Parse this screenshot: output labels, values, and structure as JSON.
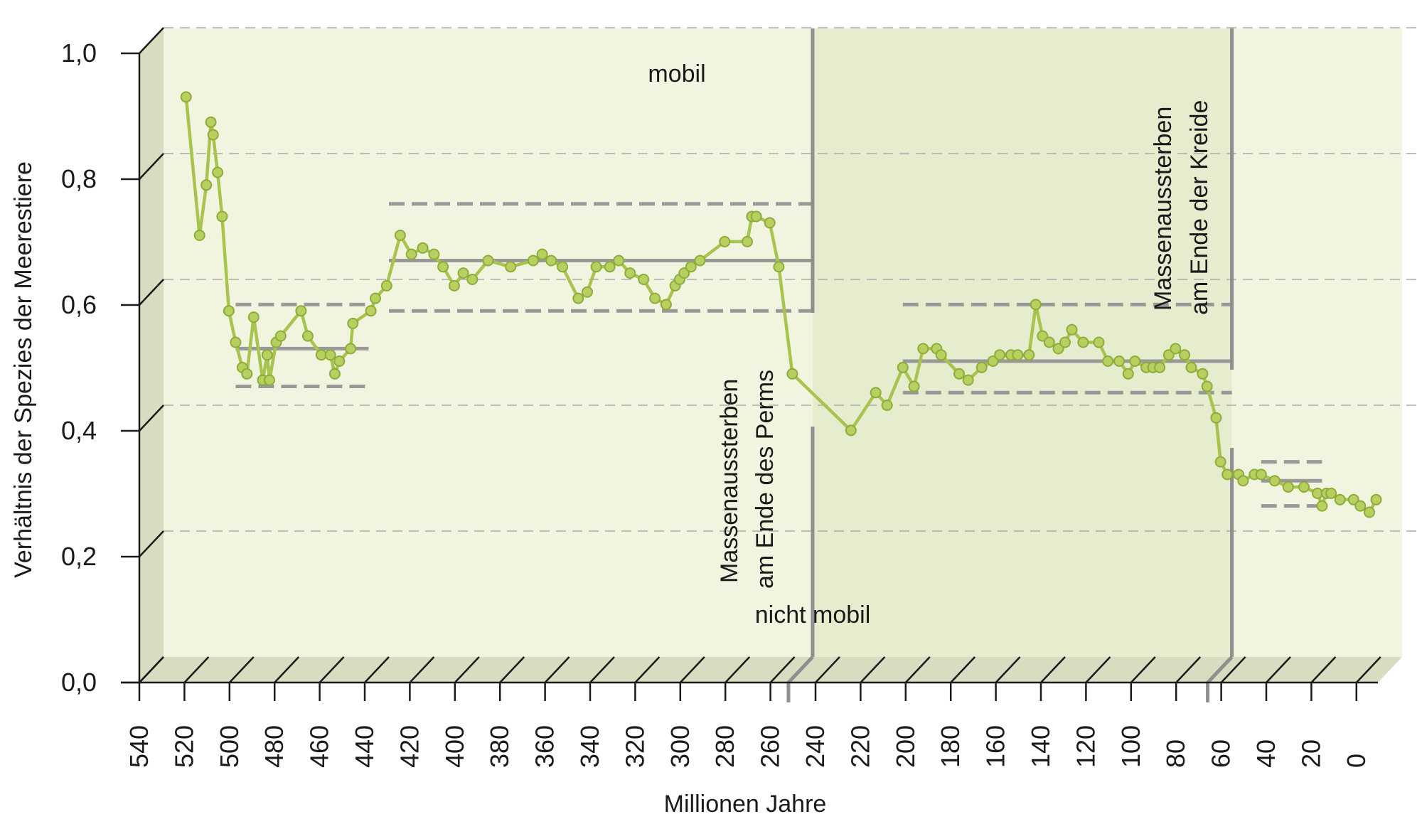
{
  "chart_data": {
    "type": "line",
    "ylabel": "Verhältnis der Spezies der Meerestiere",
    "xlabel": "Millionen Jahre",
    "xlim": [
      540,
      0
    ],
    "ylim": [
      0,
      1.0
    ],
    "y_ticks": [
      0.0,
      0.2,
      0.4,
      0.6,
      0.8,
      1.0
    ],
    "y_tick_labels": [
      "0,0",
      "0,2",
      "0,4",
      "0,6",
      "0,8",
      "1,0"
    ],
    "x_ticks": [
      540,
      520,
      500,
      480,
      460,
      440,
      420,
      400,
      380,
      360,
      340,
      320,
      300,
      280,
      260,
      240,
      220,
      200,
      180,
      160,
      140,
      120,
      100,
      80,
      60,
      40,
      20,
      0
    ],
    "x_tick_labels": [
      "540",
      "520",
      "500",
      "480",
      "460",
      "440",
      "420",
      "400",
      "380",
      "360",
      "340",
      "320",
      "300",
      "280",
      "260",
      "240",
      "220",
      "200",
      "180",
      "160",
      "140",
      "120",
      "100",
      "80",
      "60",
      "40",
      "20",
      "0"
    ],
    "grid": true,
    "colors": {
      "line": "#a8c44e",
      "marker": "#b7d160",
      "panel_light": "#f1f5e0",
      "panel_dark": "#e6edcf",
      "floor": "#d6ddc0",
      "reference": "#999999"
    },
    "annotations": {
      "top": "mobil",
      "bottom": "nicht mobil",
      "perm": [
        "Massenaussterben",
        "am Ende des Perms"
      ],
      "kreide": [
        "Massenaussterben",
        "am Ende der Kreide"
      ]
    },
    "extinction_events": [
      252,
      66
    ],
    "series": [
      {
        "x": [
          530,
          524,
          521,
          519,
          518,
          516,
          514,
          511,
          508,
          505,
          503,
          500,
          496,
          494,
          493,
          490,
          488,
          479,
          476,
          470,
          466,
          464,
          462,
          457,
          456,
          448,
          446,
          441,
          435,
          430,
          425,
          420,
          416,
          411,
          407,
          403,
          396,
          386,
          376,
          372,
          368,
          363,
          356,
          352,
          348,
          342,
          338,
          333,
          327,
          322,
          317,
          313,
          311,
          309,
          306,
          302,
          291,
          281,
          279,
          277,
          271,
          267,
          261,
          235,
          224,
          219,
          212,
          207,
          203,
          197,
          195,
          187,
          183,
          177,
          172,
          169,
          164,
          161,
          156,
          153,
          150,
          147,
          143,
          140,
          137,
          132,
          125,
          121,
          116,
          112,
          109,
          104,
          101,
          98,
          94,
          91,
          87,
          84,
          79,
          77,
          73,
          71,
          68,
          63,
          61,
          56,
          53,
          47,
          41,
          34,
          28,
          26,
          24,
          22,
          18,
          12,
          9,
          5,
          2
        ],
        "y": [
          0.89,
          0.67,
          0.75,
          0.85,
          0.83,
          0.77,
          0.7,
          0.55,
          0.5,
          0.46,
          0.45,
          0.54,
          0.44,
          0.48,
          0.44,
          0.5,
          0.51,
          0.55,
          0.51,
          0.48,
          0.48,
          0.45,
          0.47,
          0.49,
          0.53,
          0.55,
          0.57,
          0.59,
          0.67,
          0.64,
          0.65,
          0.64,
          0.62,
          0.59,
          0.61,
          0.6,
          0.63,
          0.62,
          0.63,
          0.64,
          0.63,
          0.62,
          0.57,
          0.58,
          0.62,
          0.62,
          0.63,
          0.61,
          0.6,
          0.57,
          0.56,
          0.59,
          0.6,
          0.61,
          0.62,
          0.63,
          0.66,
          0.66,
          0.7,
          0.7,
          0.69,
          0.62,
          0.45,
          0.36,
          0.42,
          0.4,
          0.46,
          0.43,
          0.49,
          0.49,
          0.48,
          0.45,
          0.44,
          0.46,
          0.47,
          0.48,
          0.48,
          0.48,
          0.48,
          0.56,
          0.51,
          0.5,
          0.49,
          0.5,
          0.52,
          0.5,
          0.5,
          0.47,
          0.47,
          0.45,
          0.47,
          0.46,
          0.46,
          0.46,
          0.48,
          0.49,
          0.48,
          0.46,
          0.45,
          0.43,
          0.38,
          0.31,
          0.29,
          0.29,
          0.28,
          0.29,
          0.29,
          0.28,
          0.27,
          0.27,
          0.26,
          0.24,
          0.26,
          0.26,
          0.25,
          0.25,
          0.24,
          0.23,
          0.25
        ]
      }
    ],
    "reference_segments": [
      {
        "from": 508,
        "to": 449,
        "mean": 0.49,
        "lower": 0.43,
        "upper": 0.56
      },
      {
        "from": 440,
        "to": 252,
        "mean": 0.63,
        "lower": 0.55,
        "upper": 0.72
      },
      {
        "from": 212,
        "to": 66,
        "mean": 0.47,
        "lower": 0.42,
        "upper": 0.56
      },
      {
        "from": 53,
        "to": 26,
        "mean": 0.28,
        "lower": 0.24,
        "upper": 0.31
      }
    ]
  }
}
